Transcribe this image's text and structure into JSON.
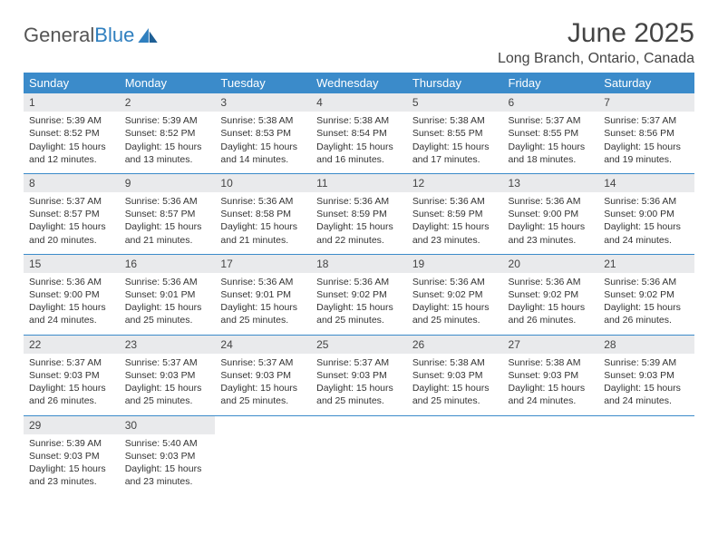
{
  "logo": {
    "text1": "General",
    "text2": "Blue"
  },
  "title": "June 2025",
  "location": "Long Branch, Ontario, Canada",
  "colors": {
    "header_bg": "#3b8bca",
    "header_text": "#ffffff",
    "daynum_bg": "#e9eaec",
    "cell_border": "#3b8bca",
    "body_text": "#333333",
    "title_text": "#444444",
    "logo_gray": "#555555",
    "logo_blue": "#2f7fbf",
    "background": "#ffffff"
  },
  "typography": {
    "title_fontsize": 30,
    "location_fontsize": 16,
    "header_fontsize": 13,
    "daynum_fontsize": 12,
    "cell_fontsize": 10.5,
    "logo_fontsize": 22
  },
  "weekdays": [
    "Sunday",
    "Monday",
    "Tuesday",
    "Wednesday",
    "Thursday",
    "Friday",
    "Saturday"
  ],
  "days": {
    "1": {
      "sunrise": "5:39 AM",
      "sunset": "8:52 PM",
      "daylight": "15 hours and 12 minutes."
    },
    "2": {
      "sunrise": "5:39 AM",
      "sunset": "8:52 PM",
      "daylight": "15 hours and 13 minutes."
    },
    "3": {
      "sunrise": "5:38 AM",
      "sunset": "8:53 PM",
      "daylight": "15 hours and 14 minutes."
    },
    "4": {
      "sunrise": "5:38 AM",
      "sunset": "8:54 PM",
      "daylight": "15 hours and 16 minutes."
    },
    "5": {
      "sunrise": "5:38 AM",
      "sunset": "8:55 PM",
      "daylight": "15 hours and 17 minutes."
    },
    "6": {
      "sunrise": "5:37 AM",
      "sunset": "8:55 PM",
      "daylight": "15 hours and 18 minutes."
    },
    "7": {
      "sunrise": "5:37 AM",
      "sunset": "8:56 PM",
      "daylight": "15 hours and 19 minutes."
    },
    "8": {
      "sunrise": "5:37 AM",
      "sunset": "8:57 PM",
      "daylight": "15 hours and 20 minutes."
    },
    "9": {
      "sunrise": "5:36 AM",
      "sunset": "8:57 PM",
      "daylight": "15 hours and 21 minutes."
    },
    "10": {
      "sunrise": "5:36 AM",
      "sunset": "8:58 PM",
      "daylight": "15 hours and 21 minutes."
    },
    "11": {
      "sunrise": "5:36 AM",
      "sunset": "8:59 PM",
      "daylight": "15 hours and 22 minutes."
    },
    "12": {
      "sunrise": "5:36 AM",
      "sunset": "8:59 PM",
      "daylight": "15 hours and 23 minutes."
    },
    "13": {
      "sunrise": "5:36 AM",
      "sunset": "9:00 PM",
      "daylight": "15 hours and 23 minutes."
    },
    "14": {
      "sunrise": "5:36 AM",
      "sunset": "9:00 PM",
      "daylight": "15 hours and 24 minutes."
    },
    "15": {
      "sunrise": "5:36 AM",
      "sunset": "9:00 PM",
      "daylight": "15 hours and 24 minutes."
    },
    "16": {
      "sunrise": "5:36 AM",
      "sunset": "9:01 PM",
      "daylight": "15 hours and 25 minutes."
    },
    "17": {
      "sunrise": "5:36 AM",
      "sunset": "9:01 PM",
      "daylight": "15 hours and 25 minutes."
    },
    "18": {
      "sunrise": "5:36 AM",
      "sunset": "9:02 PM",
      "daylight": "15 hours and 25 minutes."
    },
    "19": {
      "sunrise": "5:36 AM",
      "sunset": "9:02 PM",
      "daylight": "15 hours and 25 minutes."
    },
    "20": {
      "sunrise": "5:36 AM",
      "sunset": "9:02 PM",
      "daylight": "15 hours and 26 minutes."
    },
    "21": {
      "sunrise": "5:36 AM",
      "sunset": "9:02 PM",
      "daylight": "15 hours and 26 minutes."
    },
    "22": {
      "sunrise": "5:37 AM",
      "sunset": "9:03 PM",
      "daylight": "15 hours and 26 minutes."
    },
    "23": {
      "sunrise": "5:37 AM",
      "sunset": "9:03 PM",
      "daylight": "15 hours and 25 minutes."
    },
    "24": {
      "sunrise": "5:37 AM",
      "sunset": "9:03 PM",
      "daylight": "15 hours and 25 minutes."
    },
    "25": {
      "sunrise": "5:37 AM",
      "sunset": "9:03 PM",
      "daylight": "15 hours and 25 minutes."
    },
    "26": {
      "sunrise": "5:38 AM",
      "sunset": "9:03 PM",
      "daylight": "15 hours and 25 minutes."
    },
    "27": {
      "sunrise": "5:38 AM",
      "sunset": "9:03 PM",
      "daylight": "15 hours and 24 minutes."
    },
    "28": {
      "sunrise": "5:39 AM",
      "sunset": "9:03 PM",
      "daylight": "15 hours and 24 minutes."
    },
    "29": {
      "sunrise": "5:39 AM",
      "sunset": "9:03 PM",
      "daylight": "15 hours and 23 minutes."
    },
    "30": {
      "sunrise": "5:40 AM",
      "sunset": "9:03 PM",
      "daylight": "15 hours and 23 minutes."
    }
  },
  "labels": {
    "sunrise": "Sunrise: ",
    "sunset": "Sunset: ",
    "daylight": "Daylight: "
  },
  "layout": {
    "columns": 7,
    "rows": 5,
    "first_weekday_index": 0,
    "total_days": 30
  }
}
